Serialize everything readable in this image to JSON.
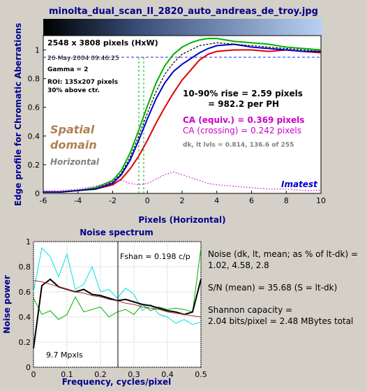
{
  "window": {
    "title": "minolta_dual_scan_II_2820_auto_andreas_de_troy.jpg"
  },
  "annotations": {
    "size": "2548 x 3808 pixels (HxW)",
    "date": "26-May-2004 09:46:25",
    "gamma": "Gamma = 2",
    "roi": "ROI: 135x207 pixels",
    "pos": "30% above ctr.",
    "rise1": "10-90% rise = 2.59 pixels",
    "rise2": "= 982.2 per PH",
    "ca_equiv": "CA (equiv.) = 0.369 pixels",
    "ca_cross": "CA (crossing) = 0.242 pixels",
    "levels": "dk, lt lvls = 0.814, 136.6 of 255",
    "spatial": "Spatial",
    "domain": "domain",
    "horizontal": "Horizontal",
    "brand": "Imatest",
    "fshan": "Fshan = 0.198 c/p",
    "mpxls": "9.7 Mpxls"
  },
  "stats": {
    "noise1": "Noise (dk, lt, mean; as % of lt-dk) =",
    "noise2": "1.02,  4.58,  2.8",
    "sn": "S/N (mean) = 35.68   (S = lt-dk)",
    "shannon1": "Shannon capacity =",
    "shannon2": "2.04 bits/pixel = 2.48 MBytes total"
  },
  "colors": {
    "red": "#dd0000",
    "green": "#00b000",
    "blue": "#0000cc",
    "black": "#000000",
    "magenta": "#cc00cc",
    "cyan": "#00e0e0",
    "darkred": "#a03030"
  },
  "chart_data": [
    {
      "type": "line",
      "title": "",
      "xlabel": "Pixels (Horizontal)",
      "ylabel": "Edge profile for Chromatic Aberrations",
      "xlim": [
        -6,
        10
      ],
      "ylim": [
        0,
        1.1
      ],
      "xticks": [
        "-6",
        "-4",
        "-2",
        "0",
        "2",
        "4",
        "6",
        "8",
        "10"
      ],
      "yticks": [
        "0",
        "0.2",
        "0.4",
        "0.6",
        "0.8",
        "1"
      ],
      "grid": false,
      "x": [
        -6,
        -5,
        -4,
        -3,
        -2,
        -1.5,
        -1,
        -0.5,
        0,
        0.5,
        1,
        1.5,
        2,
        2.5,
        3,
        3.5,
        4,
        5,
        6,
        7,
        8,
        9,
        10
      ],
      "series": [
        {
          "color": "red",
          "values": [
            0.01,
            0.01,
            0.02,
            0.03,
            0.06,
            0.1,
            0.17,
            0.26,
            0.37,
            0.49,
            0.6,
            0.7,
            0.79,
            0.86,
            0.93,
            0.97,
            0.99,
            1.0,
            1.0,
            0.99,
            1.0,
            0.99,
            0.98
          ]
        },
        {
          "color": "green",
          "values": [
            0.01,
            0.01,
            0.02,
            0.04,
            0.09,
            0.16,
            0.28,
            0.44,
            0.61,
            0.77,
            0.89,
            0.97,
            1.02,
            1.05,
            1.07,
            1.08,
            1.08,
            1.06,
            1.05,
            1.04,
            1.02,
            1.01,
            1.0
          ]
        },
        {
          "color": "blue",
          "values": [
            0.01,
            0.01,
            0.02,
            0.03,
            0.07,
            0.13,
            0.23,
            0.37,
            0.52,
            0.66,
            0.77,
            0.85,
            0.9,
            0.94,
            0.98,
            1.01,
            1.03,
            1.04,
            1.02,
            1.01,
            1.0,
            0.99,
            0.99
          ]
        },
        {
          "color": "black",
          "dashed": true,
          "values": [
            0.01,
            0.01,
            0.02,
            0.03,
            0.08,
            0.14,
            0.25,
            0.4,
            0.56,
            0.71,
            0.83,
            0.91,
            0.97,
            1.0,
            1.03,
            1.04,
            1.05,
            1.04,
            1.03,
            1.02,
            1.01,
            1.0,
            0.99
          ]
        },
        {
          "color": "magenta",
          "dotted": true,
          "values": [
            0.02,
            0.02,
            0.03,
            0.05,
            0.08,
            0.09,
            0.07,
            0.06,
            0.07,
            0.1,
            0.13,
            0.15,
            0.13,
            0.11,
            0.09,
            0.07,
            0.06,
            0.05,
            0.04,
            0.03,
            0.03,
            0.02,
            0.02
          ]
        }
      ]
    },
    {
      "type": "line",
      "title": "Noise spectrum",
      "xlabel": "Frequency, cycles/pixel",
      "ylabel": "Noise power",
      "xlim": [
        0,
        0.5
      ],
      "ylim": [
        0,
        1
      ],
      "xticks": [
        "0",
        "0.1",
        "0.2",
        "0.3",
        "0.4",
        "0.5"
      ],
      "yticks": [
        "0",
        "0.2",
        "0.4",
        "0.6",
        "0.8",
        "1"
      ],
      "grid": true,
      "x": [
        0,
        0.025,
        0.05,
        0.075,
        0.1,
        0.125,
        0.15,
        0.175,
        0.2,
        0.225,
        0.25,
        0.275,
        0.3,
        0.325,
        0.35,
        0.375,
        0.4,
        0.425,
        0.45,
        0.475,
        0.5
      ],
      "series": [
        {
          "color": "cyan",
          "values": [
            0.6,
            0.95,
            0.88,
            0.72,
            0.9,
            0.62,
            0.66,
            0.8,
            0.6,
            0.62,
            0.55,
            0.63,
            0.58,
            0.45,
            0.5,
            0.42,
            0.4,
            0.35,
            0.38,
            0.34,
            0.36
          ]
        },
        {
          "color": "green",
          "values": [
            0.55,
            0.42,
            0.45,
            0.38,
            0.42,
            0.56,
            0.44,
            0.46,
            0.48,
            0.4,
            0.44,
            0.46,
            0.42,
            0.5,
            0.45,
            0.48,
            0.46,
            0.47,
            0.46,
            0.44,
            0.95
          ]
        },
        {
          "color": "black",
          "values": [
            0.15,
            0.65,
            0.7,
            0.64,
            0.62,
            0.6,
            0.62,
            0.58,
            0.57,
            0.55,
            0.53,
            0.54,
            0.52,
            0.5,
            0.49,
            0.47,
            0.45,
            0.44,
            0.42,
            0.44,
            0.7
          ]
        },
        {
          "color": "darkred",
          "values": [
            0.69,
            0.68,
            0.66,
            0.64,
            0.62,
            0.6,
            0.59,
            0.57,
            0.56,
            0.54,
            0.53,
            0.51,
            0.5,
            0.48,
            0.47,
            0.46,
            0.44,
            0.43,
            0.42,
            0.41,
            0.4
          ]
        }
      ]
    }
  ]
}
